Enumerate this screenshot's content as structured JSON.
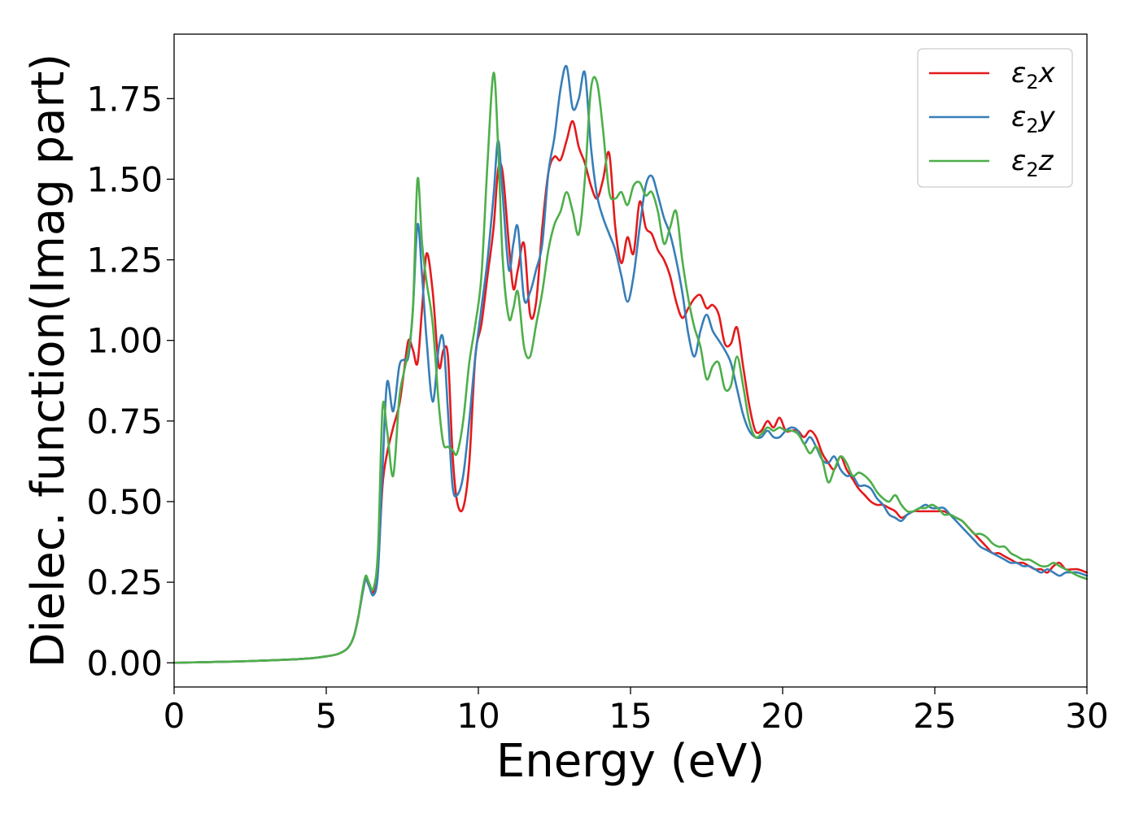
{
  "chart_data": {
    "type": "line",
    "title": "",
    "xlabel": "Energy (eV)",
    "ylabel": "Dielec. function(Imag part)",
    "xlim": [
      0,
      30
    ],
    "ylim": [
      -0.075,
      1.95
    ],
    "xticks": [
      0,
      5,
      10,
      15,
      20,
      25,
      30
    ],
    "xtick_labels": [
      "0",
      "5",
      "10",
      "15",
      "20",
      "25",
      "30"
    ],
    "yticks": [
      0,
      0.25,
      0.5,
      0.75,
      1.0,
      1.25,
      1.5,
      1.75
    ],
    "ytick_labels": [
      "0.00",
      "0.25",
      "0.50",
      "0.75",
      "1.00",
      "1.25",
      "1.50",
      "1.75"
    ],
    "grid": false,
    "legend_position": "top-right",
    "series": [
      {
        "name": "ε₂x",
        "legend": {
          "base": "ε",
          "sub": "2",
          "axis": "x"
        },
        "color": "#e41a1c",
        "x": [
          0,
          1,
          2,
          3,
          4,
          4.5,
          5,
          5.4,
          5.7,
          5.9,
          6.05,
          6.2,
          6.3,
          6.4,
          6.55,
          6.7,
          6.85,
          7.0,
          7.2,
          7.4,
          7.55,
          7.7,
          7.85,
          8.0,
          8.15,
          8.3,
          8.5,
          8.7,
          8.85,
          9.0,
          9.15,
          9.3,
          9.5,
          9.7,
          9.9,
          10.1,
          10.3,
          10.5,
          10.65,
          10.8,
          11.0,
          11.15,
          11.3,
          11.5,
          11.7,
          11.9,
          12.1,
          12.3,
          12.5,
          12.7,
          12.9,
          13.1,
          13.3,
          13.5,
          13.7,
          13.9,
          14.1,
          14.3,
          14.5,
          14.7,
          14.9,
          15.1,
          15.3,
          15.5,
          15.7,
          15.9,
          16.1,
          16.3,
          16.5,
          16.7,
          16.9,
          17.1,
          17.3,
          17.5,
          17.7,
          17.9,
          18.1,
          18.3,
          18.5,
          18.7,
          18.9,
          19.1,
          19.3,
          19.5,
          19.7,
          19.9,
          20.1,
          20.3,
          20.5,
          20.7,
          20.9,
          21.1,
          21.3,
          21.5,
          21.7,
          21.9,
          22.1,
          22.3,
          22.5,
          22.7,
          22.9,
          23.1,
          23.3,
          23.5,
          23.7,
          23.9,
          24.1,
          24.3,
          24.5,
          24.7,
          24.9,
          25.1,
          25.3,
          25.5,
          25.7,
          25.9,
          26.1,
          26.3,
          26.5,
          26.7,
          26.9,
          27.1,
          27.3,
          27.5,
          27.7,
          27.9,
          28.1,
          28.3,
          28.5,
          28.7,
          28.9,
          29.1,
          29.3,
          29.5,
          29.7,
          30
        ],
        "y": [
          0,
          0.002,
          0.004,
          0.007,
          0.011,
          0.014,
          0.02,
          0.028,
          0.045,
          0.08,
          0.14,
          0.22,
          0.26,
          0.24,
          0.22,
          0.3,
          0.55,
          0.65,
          0.73,
          0.8,
          0.9,
          1.0,
          0.97,
          0.93,
          1.1,
          1.27,
          1.15,
          0.92,
          0.97,
          0.95,
          0.65,
          0.5,
          0.48,
          0.62,
          0.95,
          1.05,
          1.2,
          1.35,
          1.53,
          1.52,
          1.3,
          1.16,
          1.22,
          1.3,
          1.08,
          1.12,
          1.35,
          1.52,
          1.57,
          1.56,
          1.62,
          1.68,
          1.6,
          1.55,
          1.48,
          1.44,
          1.5,
          1.58,
          1.35,
          1.24,
          1.32,
          1.27,
          1.43,
          1.35,
          1.33,
          1.28,
          1.25,
          1.2,
          1.12,
          1.07,
          1.1,
          1.13,
          1.14,
          1.1,
          1.11,
          1.08,
          0.99,
          0.99,
          1.04,
          0.92,
          0.8,
          0.72,
          0.72,
          0.75,
          0.73,
          0.76,
          0.72,
          0.72,
          0.72,
          0.7,
          0.72,
          0.7,
          0.65,
          0.62,
          0.6,
          0.64,
          0.6,
          0.57,
          0.54,
          0.52,
          0.5,
          0.49,
          0.49,
          0.48,
          0.47,
          0.45,
          0.46,
          0.47,
          0.47,
          0.47,
          0.47,
          0.47,
          0.47,
          0.46,
          0.45,
          0.44,
          0.42,
          0.4,
          0.38,
          0.36,
          0.34,
          0.34,
          0.33,
          0.32,
          0.31,
          0.31,
          0.3,
          0.29,
          0.29,
          0.28,
          0.3,
          0.31,
          0.29,
          0.29,
          0.29,
          0.28
        ]
      },
      {
        "name": "ε₂y",
        "legend": {
          "base": "ε",
          "sub": "2",
          "axis": "y"
        },
        "color": "#377eb8",
        "x": [
          0,
          1,
          2,
          3,
          4,
          4.5,
          5,
          5.4,
          5.7,
          5.9,
          6.05,
          6.2,
          6.3,
          6.4,
          6.55,
          6.7,
          6.85,
          7.0,
          7.2,
          7.4,
          7.55,
          7.7,
          7.85,
          8.0,
          8.15,
          8.3,
          8.5,
          8.7,
          8.85,
          9.0,
          9.15,
          9.3,
          9.5,
          9.7,
          9.9,
          10.1,
          10.3,
          10.5,
          10.65,
          10.8,
          11.0,
          11.15,
          11.3,
          11.5,
          11.7,
          11.9,
          12.1,
          12.3,
          12.5,
          12.7,
          12.9,
          13.1,
          13.3,
          13.5,
          13.7,
          13.9,
          14.1,
          14.3,
          14.5,
          14.7,
          14.9,
          15.1,
          15.3,
          15.5,
          15.7,
          15.9,
          16.1,
          16.3,
          16.5,
          16.7,
          16.9,
          17.1,
          17.3,
          17.5,
          17.7,
          17.9,
          18.1,
          18.3,
          18.5,
          18.7,
          18.9,
          19.1,
          19.3,
          19.5,
          19.7,
          19.9,
          20.1,
          20.3,
          20.5,
          20.7,
          20.9,
          21.1,
          21.3,
          21.5,
          21.7,
          21.9,
          22.1,
          22.3,
          22.5,
          22.7,
          22.9,
          23.1,
          23.3,
          23.5,
          23.7,
          23.9,
          24.1,
          24.3,
          24.5,
          24.7,
          24.9,
          25.1,
          25.3,
          25.5,
          25.7,
          25.9,
          26.1,
          26.3,
          26.5,
          26.7,
          26.9,
          27.1,
          27.3,
          27.5,
          27.7,
          27.9,
          28.1,
          28.3,
          28.5,
          28.7,
          28.9,
          29.1,
          29.3,
          29.5,
          29.7,
          30
        ],
        "y": [
          0,
          0.002,
          0.004,
          0.007,
          0.011,
          0.014,
          0.02,
          0.028,
          0.045,
          0.08,
          0.14,
          0.22,
          0.26,
          0.24,
          0.21,
          0.28,
          0.6,
          0.87,
          0.78,
          0.92,
          0.94,
          0.95,
          1.1,
          1.36,
          1.2,
          1.0,
          0.81,
          0.98,
          1.0,
          0.78,
          0.55,
          0.52,
          0.58,
          0.75,
          0.95,
          1.1,
          1.25,
          1.45,
          1.62,
          1.45,
          1.22,
          1.3,
          1.35,
          1.13,
          1.15,
          1.22,
          1.3,
          1.52,
          1.63,
          1.78,
          1.85,
          1.72,
          1.75,
          1.83,
          1.6,
          1.45,
          1.38,
          1.33,
          1.28,
          1.2,
          1.12,
          1.2,
          1.35,
          1.48,
          1.51,
          1.45,
          1.38,
          1.33,
          1.25,
          1.15,
          1.02,
          0.95,
          1.03,
          1.08,
          1.03,
          1.0,
          0.97,
          0.93,
          0.85,
          0.77,
          0.72,
          0.7,
          0.7,
          0.72,
          0.7,
          0.7,
          0.72,
          0.73,
          0.72,
          0.68,
          0.7,
          0.67,
          0.63,
          0.62,
          0.64,
          0.6,
          0.58,
          0.58,
          0.55,
          0.55,
          0.54,
          0.51,
          0.49,
          0.46,
          0.45,
          0.44,
          0.46,
          0.47,
          0.48,
          0.49,
          0.48,
          0.48,
          0.48,
          0.46,
          0.44,
          0.42,
          0.4,
          0.38,
          0.36,
          0.35,
          0.34,
          0.33,
          0.32,
          0.31,
          0.31,
          0.3,
          0.3,
          0.29,
          0.28,
          0.29,
          0.28,
          0.27,
          0.28,
          0.28,
          0.28,
          0.27
        ]
      },
      {
        "name": "ε₂z",
        "legend": {
          "base": "ε",
          "sub": "2",
          "axis": "z"
        },
        "color": "#4daf4a",
        "x": [
          0,
          1,
          2,
          3,
          4,
          4.5,
          5,
          5.4,
          5.7,
          5.9,
          6.05,
          6.2,
          6.3,
          6.4,
          6.55,
          6.7,
          6.85,
          7.0,
          7.2,
          7.4,
          7.55,
          7.7,
          7.85,
          8.0,
          8.15,
          8.3,
          8.5,
          8.7,
          8.85,
          9.0,
          9.15,
          9.3,
          9.5,
          9.7,
          9.9,
          10.1,
          10.3,
          10.5,
          10.65,
          10.8,
          11.0,
          11.15,
          11.3,
          11.5,
          11.7,
          11.9,
          12.1,
          12.3,
          12.5,
          12.7,
          12.9,
          13.1,
          13.3,
          13.5,
          13.7,
          13.9,
          14.1,
          14.3,
          14.5,
          14.7,
          14.9,
          15.1,
          15.3,
          15.5,
          15.7,
          15.9,
          16.1,
          16.3,
          16.5,
          16.7,
          16.9,
          17.1,
          17.3,
          17.5,
          17.7,
          17.9,
          18.1,
          18.3,
          18.5,
          18.7,
          18.9,
          19.1,
          19.3,
          19.5,
          19.7,
          19.9,
          20.1,
          20.3,
          20.5,
          20.7,
          20.9,
          21.1,
          21.3,
          21.5,
          21.7,
          21.9,
          22.1,
          22.3,
          22.5,
          22.7,
          22.9,
          23.1,
          23.3,
          23.5,
          23.7,
          23.9,
          24.1,
          24.3,
          24.5,
          24.7,
          24.9,
          25.1,
          25.3,
          25.5,
          25.7,
          25.9,
          26.1,
          26.3,
          26.5,
          26.7,
          26.9,
          27.1,
          27.3,
          27.5,
          27.7,
          27.9,
          28.1,
          28.3,
          28.5,
          28.7,
          28.9,
          29.1,
          29.3,
          29.5,
          29.7,
          30
        ],
        "y": [
          0,
          0.002,
          0.004,
          0.007,
          0.011,
          0.014,
          0.02,
          0.028,
          0.045,
          0.08,
          0.14,
          0.23,
          0.27,
          0.25,
          0.23,
          0.35,
          0.79,
          0.72,
          0.58,
          0.82,
          0.9,
          0.97,
          1.1,
          1.5,
          1.3,
          1.18,
          1.05,
          0.8,
          0.68,
          0.67,
          0.66,
          0.65,
          0.75,
          0.93,
          1.05,
          1.2,
          1.55,
          1.83,
          1.6,
          1.25,
          1.07,
          1.1,
          1.15,
          0.98,
          0.95,
          1.05,
          1.15,
          1.28,
          1.36,
          1.4,
          1.46,
          1.4,
          1.33,
          1.5,
          1.78,
          1.8,
          1.65,
          1.46,
          1.44,
          1.46,
          1.42,
          1.48,
          1.49,
          1.45,
          1.46,
          1.4,
          1.3,
          1.35,
          1.4,
          1.25,
          1.13,
          1.04,
          0.98,
          0.88,
          0.92,
          0.93,
          0.85,
          0.86,
          0.95,
          0.86,
          0.75,
          0.7,
          0.71,
          0.73,
          0.72,
          0.73,
          0.72,
          0.72,
          0.71,
          0.68,
          0.65,
          0.67,
          0.63,
          0.56,
          0.6,
          0.64,
          0.62,
          0.58,
          0.59,
          0.58,
          0.56,
          0.53,
          0.51,
          0.5,
          0.52,
          0.49,
          0.47,
          0.47,
          0.48,
          0.48,
          0.49,
          0.48,
          0.46,
          0.46,
          0.45,
          0.44,
          0.42,
          0.4,
          0.4,
          0.39,
          0.37,
          0.36,
          0.36,
          0.34,
          0.33,
          0.32,
          0.32,
          0.31,
          0.3,
          0.3,
          0.31,
          0.3,
          0.29,
          0.28,
          0.27,
          0.26
        ]
      }
    ]
  }
}
